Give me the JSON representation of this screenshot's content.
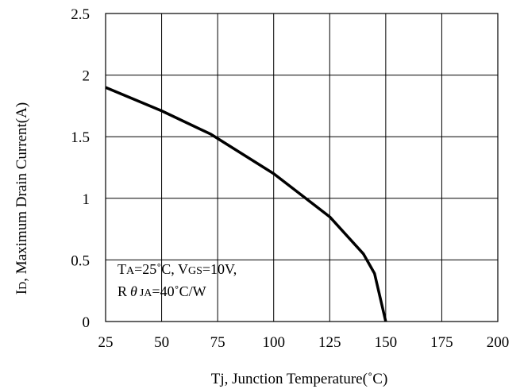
{
  "chart_data": {
    "type": "line",
    "title": "",
    "xlabel": "Tj, Junction Temperature(˚C)",
    "ylabel": {
      "main": "I",
      "sub": "D",
      "rest": ", Maximum Drain Current(A)"
    },
    "xlim": [
      25,
      200
    ],
    "ylim": [
      0,
      2.5
    ],
    "xticks": [
      "25",
      "50",
      "75",
      "100",
      "125",
      "150",
      "175",
      "200"
    ],
    "yticks": [
      "0",
      "0.5",
      "1",
      "1.5",
      "2",
      "2.5"
    ],
    "grid": true,
    "series": [
      {
        "x": [
          25,
          50,
          72,
          100,
          125,
          140,
          145,
          150
        ],
        "y": [
          1.9,
          1.71,
          1.52,
          1.2,
          0.85,
          0.55,
          0.39,
          0
        ]
      }
    ],
    "annotation": {
      "line1": {
        "t": "T",
        "t_sub": "A",
        "t_rest": "=25˚C, V",
        "v_sub": "GS",
        "v_rest": "=10V,"
      },
      "line2": {
        "r": "R",
        "theta": "θ",
        "r_sub": "JA",
        "r_rest": "=40˚C/W"
      }
    }
  }
}
